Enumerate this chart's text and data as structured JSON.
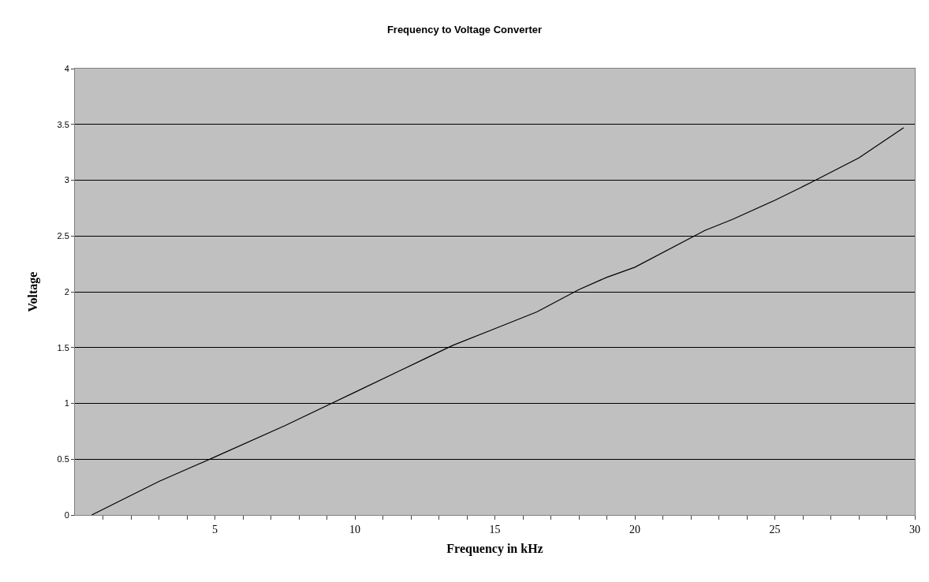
{
  "chart_data": {
    "type": "line",
    "title": "Frequency to Voltage Converter",
    "xlabel": "Frequency in kHz",
    "ylabel": "Voltage",
    "x": [
      0.6,
      3,
      5,
      7.5,
      10,
      12.5,
      13.5,
      15,
      16.5,
      18,
      19,
      20,
      22.5,
      23.5,
      25,
      26.3,
      28,
      29.6
    ],
    "series": [
      {
        "color": "#000000",
        "values": [
          0,
          0.3,
          0.52,
          0.8,
          1.1,
          1.4,
          1.52,
          1.67,
          1.82,
          2.02,
          2.13,
          2.22,
          2.55,
          2.65,
          2.82,
          2.98,
          3.2,
          3.47
        ]
      }
    ],
    "xlim": [
      0,
      30
    ],
    "xticks": [
      {
        "value": 1,
        "label": null
      },
      {
        "value": 2,
        "label": null
      },
      {
        "value": 3,
        "label": null
      },
      {
        "value": 4,
        "label": null
      },
      5,
      {
        "value": 6,
        "label": null
      },
      {
        "value": 7,
        "label": null
      },
      {
        "value": 8,
        "label": null
      },
      {
        "value": 9,
        "label": null
      },
      10,
      {
        "value": 11,
        "label": null
      },
      {
        "value": 12,
        "label": null
      },
      {
        "value": 13,
        "label": null
      },
      {
        "value": 14,
        "label": null
      },
      15,
      {
        "value": 16,
        "label": null
      },
      {
        "value": 17,
        "label": null
      },
      {
        "value": 18,
        "label": null
      },
      {
        "value": 19,
        "label": null
      },
      20,
      {
        "value": 21,
        "label": null
      },
      {
        "value": 22,
        "label": null
      },
      {
        "value": 23,
        "label": null
      },
      {
        "value": 24,
        "label": null
      },
      25,
      {
        "value": 26,
        "label": null
      },
      {
        "value": 27,
        "label": null
      },
      {
        "value": 28,
        "label": null
      },
      {
        "value": 29,
        "label": null
      },
      30
    ],
    "ylim": [
      0,
      4
    ],
    "yticks": [
      0,
      0.5,
      1,
      1.5,
      2,
      2.5,
      3,
      3.5,
      4
    ],
    "grid": "y",
    "marker": "none",
    "line_style": "solid"
  }
}
